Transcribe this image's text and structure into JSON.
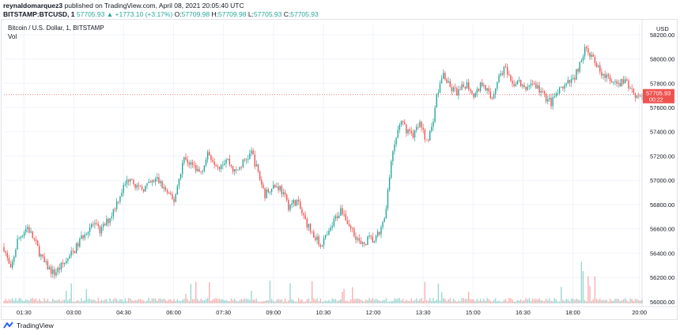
{
  "header": {
    "author": "reynaldomarquez3",
    "published": "published on TradingView.com, April 08, 2021 20:05:40 UTC",
    "symbol": "BITSTAMP:BTCUSD, 1",
    "last": "57705.93",
    "arrow": "▲",
    "change": "+1773.10 (+3.17%)",
    "o_label": "O:",
    "o_value": "57709.98",
    "h_label": "H:",
    "h_value": "57709.98",
    "l_label": "L:",
    "l_value": "57705.93",
    "c_label": "C:",
    "c_value": "57705.93"
  },
  "pane": {
    "title": "Bitcoin / U.S. Dollar, 1, BITSTAMP",
    "vol_label": "Vol",
    "currency": "USD",
    "price_tag": "57705.93",
    "countdown": "00:22"
  },
  "footer": {
    "brand": "TradingView"
  },
  "colors": {
    "up": "#26a69a",
    "down": "#ef5350",
    "tag": "#ef5350",
    "grid": "#f0f3fa"
  },
  "chart_data": {
    "type": "candlestick",
    "interval": "1 minute",
    "y_ticks": [
      58200,
      58000,
      57800,
      57600,
      57400,
      57200,
      57000,
      56800,
      56600,
      56400,
      56200,
      56000
    ],
    "y_tick_labels": [
      "58200.00",
      "58000.00",
      "57800.00",
      "57600.00",
      "57400.00",
      "57200.00",
      "57000.00",
      "56800.00",
      "56600.00",
      "56400.00",
      "56200.00",
      "56000.00"
    ],
    "ylim": [
      55960,
      58290
    ],
    "x_ticks": [
      1.5,
      3,
      4.5,
      6,
      7.5,
      9,
      10.5,
      12,
      13.5,
      15,
      16.5,
      18,
      20
    ],
    "x_tick_labels": [
      "01:30",
      "03:00",
      "04:30",
      "06:00",
      "07:30",
      "09:00",
      "10:30",
      "12:00",
      "13:30",
      "15:00",
      "16:30",
      "18:00",
      "20:00"
    ],
    "xlim": [
      0.9,
      20.08
    ],
    "last_price": 57705.93,
    "close_path": [
      [
        0.9,
        56450
      ],
      [
        1.1,
        56250
      ],
      [
        1.3,
        56500
      ],
      [
        1.6,
        56620
      ],
      [
        1.85,
        56480
      ],
      [
        2.1,
        56320
      ],
      [
        2.4,
        56230
      ],
      [
        2.65,
        56300
      ],
      [
        2.85,
        56360
      ],
      [
        3.1,
        56460
      ],
      [
        3.3,
        56560
      ],
      [
        3.55,
        56640
      ],
      [
        3.8,
        56580
      ],
      [
        4.1,
        56700
      ],
      [
        4.45,
        56920
      ],
      [
        4.7,
        57040
      ],
      [
        4.95,
        56920
      ],
      [
        5.2,
        56950
      ],
      [
        5.5,
        57010
      ],
      [
        5.8,
        56900
      ],
      [
        6.0,
        56820
      ],
      [
        6.3,
        57180
      ],
      [
        6.55,
        57130
      ],
      [
        6.8,
        57060
      ],
      [
        7.05,
        57220
      ],
      [
        7.35,
        57120
      ],
      [
        7.6,
        57180
      ],
      [
        7.85,
        57060
      ],
      [
        8.1,
        57150
      ],
      [
        8.35,
        57230
      ],
      [
        8.55,
        57050
      ],
      [
        8.75,
        56880
      ],
      [
        8.95,
        56960
      ],
      [
        9.2,
        56940
      ],
      [
        9.45,
        56790
      ],
      [
        9.7,
        56830
      ],
      [
        9.9,
        56700
      ],
      [
        10.15,
        56570
      ],
      [
        10.4,
        56470
      ],
      [
        10.65,
        56550
      ],
      [
        10.85,
        56680
      ],
      [
        11.05,
        56770
      ],
      [
        11.25,
        56640
      ],
      [
        11.45,
        56560
      ],
      [
        11.65,
        56450
      ],
      [
        11.85,
        56520
      ],
      [
        12.05,
        56500
      ],
      [
        12.25,
        56600
      ],
      [
        12.35,
        56700
      ],
      [
        12.45,
        56950
      ],
      [
        12.6,
        57240
      ],
      [
        12.8,
        57480
      ],
      [
        13.0,
        57420
      ],
      [
        13.2,
        57380
      ],
      [
        13.4,
        57460
      ],
      [
        13.6,
        57330
      ],
      [
        13.75,
        57420
      ],
      [
        13.9,
        57680
      ],
      [
        14.1,
        57880
      ],
      [
        14.3,
        57760
      ],
      [
        14.55,
        57720
      ],
      [
        14.8,
        57800
      ],
      [
        15.05,
        57700
      ],
      [
        15.3,
        57820
      ],
      [
        15.55,
        57660
      ],
      [
        15.75,
        57840
      ],
      [
        15.95,
        57930
      ],
      [
        16.15,
        57780
      ],
      [
        16.35,
        57820
      ],
      [
        16.55,
        57740
      ],
      [
        16.75,
        57810
      ],
      [
        16.95,
        57760
      ],
      [
        17.15,
        57690
      ],
      [
        17.35,
        57640
      ],
      [
        17.55,
        57720
      ],
      [
        17.8,
        57780
      ],
      [
        18.0,
        57830
      ],
      [
        18.2,
        57950
      ],
      [
        18.4,
        58100
      ],
      [
        18.55,
        58010
      ],
      [
        18.75,
        57930
      ],
      [
        18.95,
        57870
      ],
      [
        19.15,
        57800
      ],
      [
        19.35,
        57780
      ],
      [
        19.55,
        57820
      ],
      [
        19.75,
        57760
      ],
      [
        19.9,
        57700
      ],
      [
        20.05,
        57706
      ]
    ]
  }
}
